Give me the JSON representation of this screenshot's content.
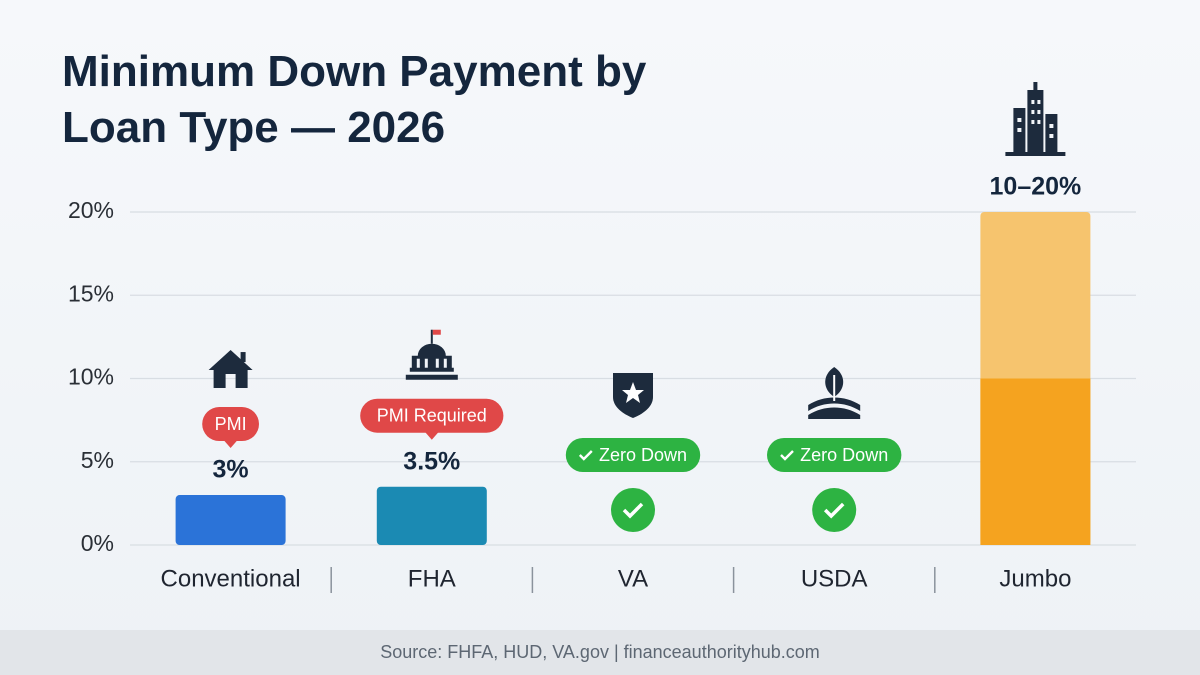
{
  "chart_data": {
    "type": "bar",
    "title": "Minimum Down Payment by Loan Type — 2026",
    "categories": [
      "Conventional",
      "FHA",
      "VA",
      "USDA",
      "Jumbo"
    ],
    "values": [
      3,
      3.5,
      0,
      0,
      20
    ],
    "min_values": [
      null,
      null,
      null,
      null,
      10
    ],
    "value_labels": [
      "3%",
      "3.5%",
      null,
      null,
      "10–20%"
    ],
    "badges": [
      "PMI",
      "PMI Required",
      "Zero Down",
      "Zero Down",
      null
    ],
    "badge_colors": [
      "#e04848",
      "#e04848",
      "#2db342",
      "#2db342",
      null
    ],
    "colors": [
      "#2b73d8",
      "#1b8ab3",
      "#2db342",
      "#2db342",
      "#f6c46e"
    ],
    "min_color": "#f5a31f",
    "ylim": [
      0,
      20
    ],
    "yticks": [
      {
        "value": 0,
        "label": "0%"
      },
      {
        "value": 5,
        "label": "5%"
      },
      {
        "value": 10,
        "label": "10%"
      },
      {
        "value": 15,
        "label": "15%"
      },
      {
        "value": 20,
        "label": "20%"
      }
    ],
    "grid": true,
    "source": "Source: FHFA, HUD, VA.gov | financeauthorityhub.com"
  }
}
